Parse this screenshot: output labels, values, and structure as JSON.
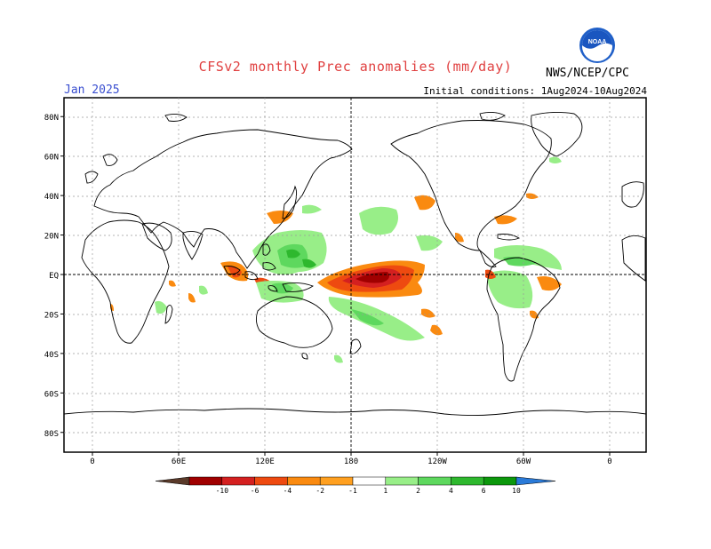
{
  "header": {
    "title": "CFSv2 monthly Prec anomalies (mm/day)",
    "month": "Jan 2025",
    "initial_conditions": "Initial conditions: 1Aug2024-10Aug2024",
    "agency": "NWS/NCEP/CPC",
    "logo_text": "NOAA",
    "logo_icon": "noaa-logo-icon"
  },
  "axes": {
    "lat_labels": [
      "80N",
      "60N",
      "40N",
      "20N",
      "EQ",
      "20S",
      "40S",
      "60S",
      "80S"
    ],
    "lat_values": [
      80,
      60,
      40,
      20,
      0,
      -20,
      -40,
      -60,
      -80
    ],
    "lon_labels": [
      "0",
      "60E",
      "120E",
      "180",
      "120W",
      "60W",
      "0"
    ],
    "lon_values": [
      0,
      60,
      120,
      180,
      240,
      300,
      360
    ]
  },
  "colorbar": {
    "labels": [
      "-10",
      "-6",
      "-4",
      "-2",
      "-1",
      "1",
      "2",
      "4",
      "6",
      "10"
    ],
    "colors": [
      "#5a3a2a",
      "#a00000",
      "#d42020",
      "#ee4a10",
      "#fa8a10",
      "#ffa020",
      "#ffffff",
      "#98ee88",
      "#5ed85e",
      "#2eb82e",
      "#0c980c",
      "#2a7ad8"
    ]
  },
  "colors": {
    "title": "#e04040",
    "month": "#3a4fd0",
    "grid": "#9a9a9a",
    "coast": "#000000"
  }
}
